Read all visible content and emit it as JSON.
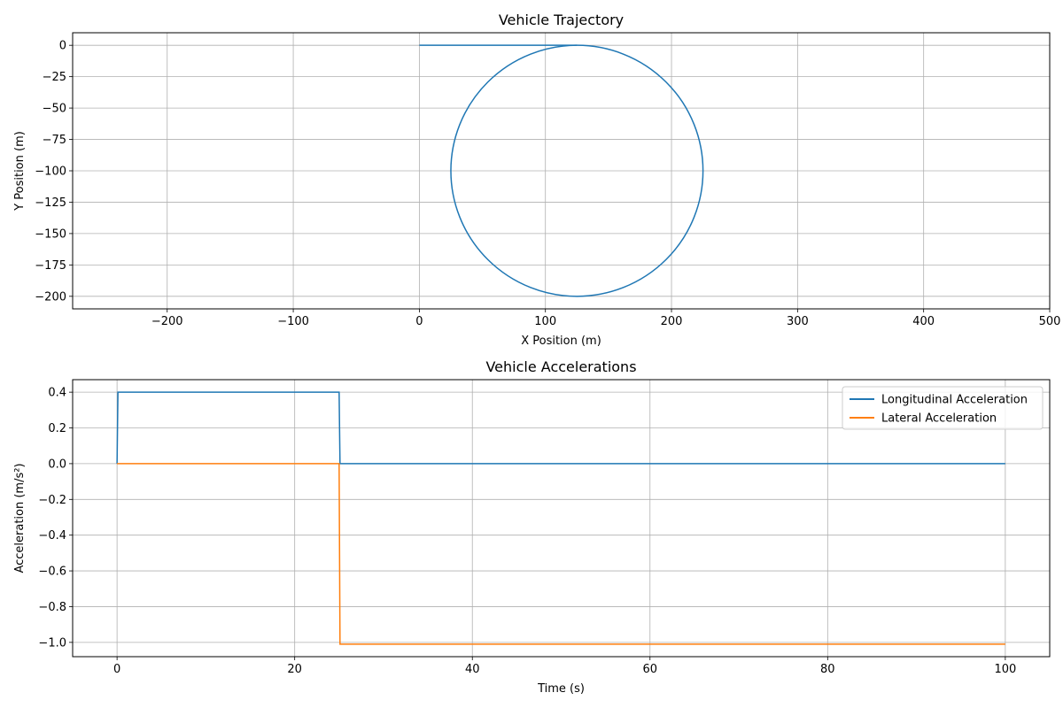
{
  "chart_data": [
    {
      "type": "line",
      "title": "Vehicle Trajectory",
      "xlabel": "X Position (m)",
      "ylabel": "Y Position (m)",
      "xlim": [
        -275,
        500
      ],
      "ylim": [
        -210,
        10
      ],
      "xticks": [
        -200,
        -100,
        0,
        100,
        200,
        300,
        400,
        500
      ],
      "yticks": [
        0,
        -25,
        -50,
        -75,
        -100,
        -125,
        -150,
        -175,
        -200
      ],
      "xtick_labels": [
        "−200",
        "−100",
        "0",
        "100",
        "200",
        "300",
        "400",
        "500"
      ],
      "ytick_labels": [
        "0",
        "−25",
        "−50",
        "−75",
        "−100",
        "−125",
        "−150",
        "−175",
        "−200"
      ],
      "grid": true,
      "series": [
        {
          "color": "#1f77b4",
          "segments": [
            {
              "kind": "line",
              "x": [
                0,
                125
              ],
              "y": [
                0,
                0
              ]
            },
            {
              "kind": "circle",
              "center": [
                125,
                -100
              ],
              "radius": 100
            }
          ]
        }
      ]
    },
    {
      "type": "line",
      "title": "Vehicle Accelerations",
      "xlabel": "Time (s)",
      "ylabel": "Acceleration (m/s²)",
      "xlim": [
        -5,
        105
      ],
      "ylim": [
        -1.08,
        0.47
      ],
      "xticks": [
        0,
        20,
        40,
        60,
        80,
        100
      ],
      "yticks": [
        0.4,
        0.2,
        0.0,
        -0.2,
        -0.4,
        -0.6,
        -0.8,
        -1.0
      ],
      "xtick_labels": [
        "0",
        "20",
        "40",
        "60",
        "80",
        "100"
      ],
      "ytick_labels": [
        "0.4",
        "0.2",
        "0.0",
        "−0.2",
        "−0.4",
        "−0.6",
        "−0.8",
        "−1.0"
      ],
      "grid": true,
      "legend": "top-right",
      "series": [
        {
          "name": "Longitudinal Acceleration",
          "color": "#1f77b4",
          "x": [
            0,
            0.1,
            25,
            25.1,
            100
          ],
          "y": [
            0,
            0.4,
            0.4,
            0,
            0
          ]
        },
        {
          "name": "Lateral Acceleration",
          "color": "#ff7f0e",
          "x": [
            0,
            25,
            25.1,
            100
          ],
          "y": [
            0,
            0,
            -1.01,
            -1.01
          ]
        }
      ]
    }
  ]
}
